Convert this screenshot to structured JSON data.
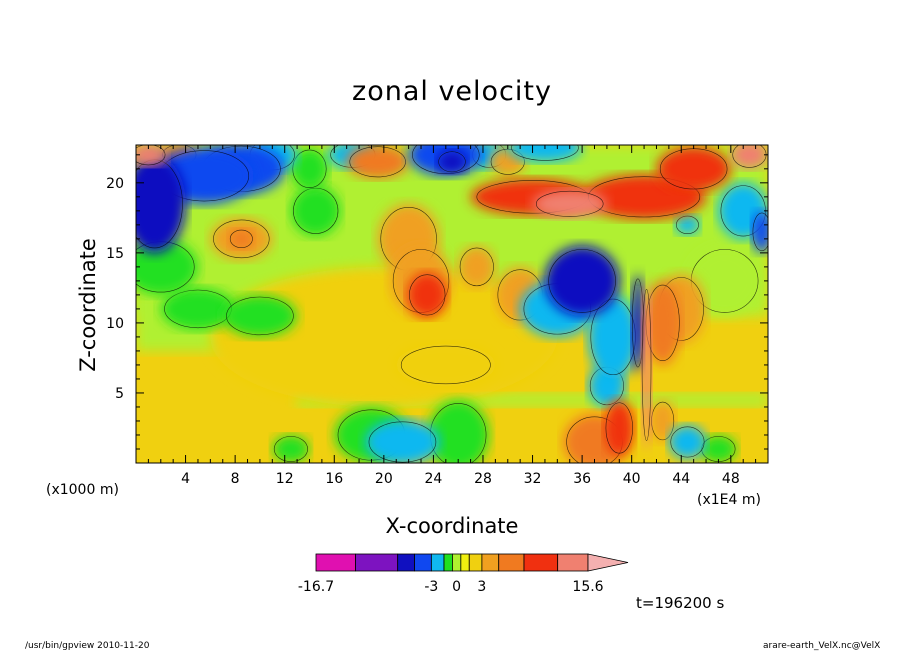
{
  "chart_data": {
    "type": "heatmap",
    "title": "zonal velocity",
    "xlabel": "X-coordinate",
    "ylabel": "Z-coordinate",
    "x_unit_label": "(x1E4 m)",
    "y_unit_label": "(x1000 m)",
    "xlim": [
      0,
      51
    ],
    "ylim": [
      0,
      22.7
    ],
    "x_ticks": [
      "4",
      "8",
      "12",
      "16",
      "20",
      "24",
      "28",
      "32",
      "36",
      "40",
      "44",
      "48"
    ],
    "x_tick_values": [
      4,
      8,
      12,
      16,
      20,
      24,
      28,
      32,
      36,
      40,
      44,
      48
    ],
    "y_ticks": [
      "5",
      "10",
      "15",
      "20"
    ],
    "y_tick_values": [
      5,
      10,
      15,
      20
    ],
    "colorbar": {
      "colors": [
        "#e010b0",
        "#7d13c0",
        "#1010c0",
        "#1048f0",
        "#10b8f0",
        "#20e020",
        "#b0f030",
        "#f0f010",
        "#f0d010",
        "#f0a020",
        "#f07a20",
        "#f03010",
        "#f08070",
        "#f4b0b0"
      ],
      "tick_labels": [
        "-16.7",
        "-3",
        "0",
        "3",
        "15.6"
      ],
      "tick_positions": [
        -16.7,
        -3,
        0,
        3,
        15.6
      ]
    },
    "field_blobs": [
      {
        "x": 1.5,
        "z": 18.5,
        "rx": 2.5,
        "rz": 3.5,
        "v": -7
      },
      {
        "x": 5.5,
        "z": 20.5,
        "rx": 4,
        "rz": 2,
        "v": -6
      },
      {
        "x": 8.5,
        "z": 21,
        "rx": 3.5,
        "rz": 1.8,
        "v": -5
      },
      {
        "x": 11,
        "z": 22,
        "rx": 2,
        "rz": 1.2,
        "v": -4
      },
      {
        "x": 1,
        "z": 22,
        "rx": 1.5,
        "rz": 0.8,
        "v": 12
      },
      {
        "x": 3.5,
        "z": 22,
        "rx": 1.5,
        "rz": 0.8,
        "v": 5
      },
      {
        "x": 14,
        "z": 21,
        "rx": 1.5,
        "rz": 1.5,
        "v": -2
      },
      {
        "x": 14.5,
        "z": 18,
        "rx": 2,
        "rz": 1.8,
        "v": -1.5
      },
      {
        "x": 19.5,
        "z": 21.5,
        "rx": 2.5,
        "rz": 1.2,
        "v": 4
      },
      {
        "x": 17.5,
        "z": 22,
        "rx": 2,
        "rz": 1,
        "v": -3
      },
      {
        "x": 25,
        "z": 22,
        "rx": 3,
        "rz": 1.5,
        "v": -5
      },
      {
        "x": 25.5,
        "z": 21.5,
        "rx": 1.2,
        "rz": 0.8,
        "v": -10
      },
      {
        "x": 28.5,
        "z": 22,
        "rx": 1.5,
        "rz": 1,
        "v": -3
      },
      {
        "x": 30,
        "z": 21.5,
        "rx": 1.5,
        "rz": 1,
        "v": 3
      },
      {
        "x": 32,
        "z": 19,
        "rx": 5,
        "rz": 1.3,
        "v": 6
      },
      {
        "x": 35,
        "z": 18.5,
        "rx": 3,
        "rz": 1,
        "v": 9
      },
      {
        "x": 41,
        "z": 19,
        "rx": 5,
        "rz": 1.6,
        "v": 6
      },
      {
        "x": 45,
        "z": 21,
        "rx": 3,
        "rz": 1.6,
        "v": 8
      },
      {
        "x": 49.5,
        "z": 22,
        "rx": 1.5,
        "rz": 1,
        "v": 10
      },
      {
        "x": 49,
        "z": 18,
        "rx": 2,
        "rz": 2,
        "v": -3
      },
      {
        "x": 50.5,
        "z": 16.5,
        "rx": 0.8,
        "rz": 1.5,
        "v": -5
      },
      {
        "x": 44.5,
        "z": 17,
        "rx": 1,
        "rz": 0.7,
        "v": -4
      },
      {
        "x": 33,
        "z": 22.5,
        "rx": 3,
        "rz": 1,
        "v": -4
      },
      {
        "x": 36,
        "z": 13,
        "rx": 3,
        "rz": 2.5,
        "v": -8
      },
      {
        "x": 34,
        "z": 11,
        "rx": 3,
        "rz": 2,
        "v": -3
      },
      {
        "x": 38.5,
        "z": 9,
        "rx": 2,
        "rz": 3,
        "v": -4
      },
      {
        "x": 38,
        "z": 5.5,
        "rx": 1.5,
        "rz": 1.5,
        "v": -3
      },
      {
        "x": 40.5,
        "z": 10,
        "rx": 0.5,
        "rz": 3.5,
        "v": -9
      },
      {
        "x": 41.2,
        "z": 7,
        "rx": 0.4,
        "rz": 6,
        "v": 12
      },
      {
        "x": 42.5,
        "z": 10,
        "rx": 1.5,
        "rz": 3,
        "v": 5
      },
      {
        "x": 44,
        "z": 11,
        "rx": 2,
        "rz": 2.5,
        "v": 3
      },
      {
        "x": 47.5,
        "z": 13,
        "rx": 3,
        "rz": 2.5,
        "v": -1
      },
      {
        "x": 22,
        "z": 16,
        "rx": 2.5,
        "rz": 2.5,
        "v": 3
      },
      {
        "x": 23,
        "z": 13,
        "rx": 2.5,
        "rz": 2.5,
        "v": 3
      },
      {
        "x": 23.5,
        "z": 12,
        "rx": 1.6,
        "rz": 1.6,
        "v": 6
      },
      {
        "x": 8.5,
        "z": 16,
        "rx": 2.5,
        "rz": 1.5,
        "v": 2.5
      },
      {
        "x": 8.5,
        "z": 16,
        "rx": 1,
        "rz": 0.7,
        "v": 5
      },
      {
        "x": 27.5,
        "z": 14,
        "rx": 1.5,
        "rz": 1.5,
        "v": 2.5
      },
      {
        "x": 31,
        "z": 12,
        "rx": 2,
        "rz": 2,
        "v": 2
      },
      {
        "x": 2,
        "z": 14,
        "rx": 3,
        "rz": 2,
        "v": -2
      },
      {
        "x": 5,
        "z": 11,
        "rx": 3,
        "rz": 1.5,
        "v": -1.5
      },
      {
        "x": 10,
        "z": 10.5,
        "rx": 3,
        "rz": 1.5,
        "v": -1.5
      },
      {
        "x": 25,
        "z": 7,
        "rx": 4,
        "rz": 1.5,
        "v": 1.5
      },
      {
        "x": 19,
        "z": 2,
        "rx": 3,
        "rz": 2,
        "v": -2
      },
      {
        "x": 21.5,
        "z": 1.5,
        "rx": 3,
        "rz": 1.6,
        "v": -4
      },
      {
        "x": 26,
        "z": 2,
        "rx": 2.5,
        "rz": 2.5,
        "v": -2
      },
      {
        "x": 12.5,
        "z": 1,
        "rx": 1.5,
        "rz": 1,
        "v": -2
      },
      {
        "x": 37,
        "z": 1.5,
        "rx": 2.5,
        "rz": 2,
        "v": 4
      },
      {
        "x": 39,
        "z": 2.5,
        "rx": 1.2,
        "rz": 2,
        "v": 8
      },
      {
        "x": 44.5,
        "z": 1.5,
        "rx": 1.5,
        "rz": 1.2,
        "v": -4
      },
      {
        "x": 47,
        "z": 1,
        "rx": 1.5,
        "rz": 1,
        "v": -2
      },
      {
        "x": 42.5,
        "z": 3,
        "rx": 1,
        "rz": 1.5,
        "v": 3
      }
    ]
  },
  "page": {
    "time_label": "t=196200 s",
    "footer_left": "/usr/bin/gpview   2010-11-20",
    "footer_right": "arare-earth_VelX.nc@VelX"
  }
}
